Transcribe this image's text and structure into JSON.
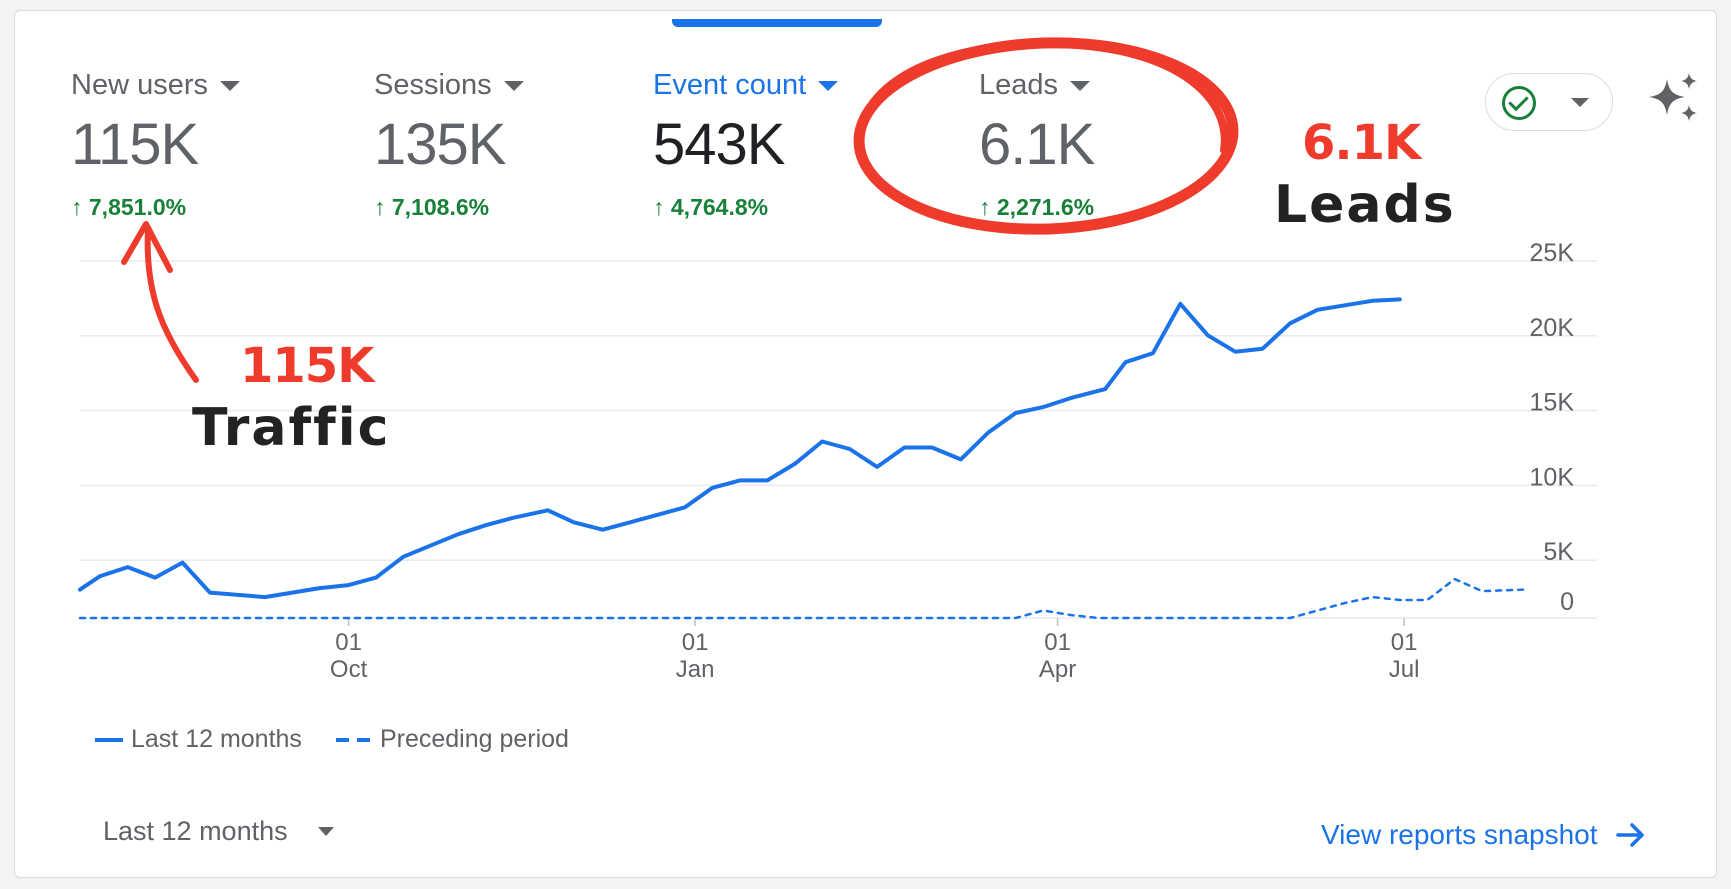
{
  "metrics": [
    {
      "label": "New users",
      "value": "115K",
      "change": "7,851.0%",
      "active": false
    },
    {
      "label": "Sessions",
      "value": "135K",
      "change": "7,108.6%",
      "active": false
    },
    {
      "label": "Event count",
      "value": "543K",
      "change": "4,764.8%",
      "active": true
    },
    {
      "label": "Leads",
      "value": "6.1K",
      "change": "2,271.6%",
      "active": false
    }
  ],
  "icons": {
    "status": "check-circle-icon",
    "insights": "sparkle-icon",
    "arrow": "arrow-right-icon",
    "change": "arrow-up-icon"
  },
  "colors": {
    "accent": "#1a73e8",
    "positive": "#188038",
    "annotation_red": "#ef3b2c",
    "annotation_black": "#222222"
  },
  "chart_data": {
    "type": "line",
    "ylim": [
      0,
      25000
    ],
    "yticks": [
      0,
      5000,
      10000,
      15000,
      20000,
      25000
    ],
    "ytick_labels": [
      "0",
      "5K",
      "10K",
      "15K",
      "20K",
      "25K"
    ],
    "xticks": [
      {
        "day": "01",
        "month": "Oct",
        "x": 0.186
      },
      {
        "day": "01",
        "month": "Jan",
        "x": 0.426
      },
      {
        "day": "01",
        "month": "Apr",
        "x": 0.677
      },
      {
        "day": "01",
        "month": "Jul",
        "x": 0.917
      }
    ],
    "grid": true,
    "legend_position": "bottom-left",
    "series": [
      {
        "name": "Last 12 months",
        "style": "solid",
        "x": [
          0,
          0.014,
          0.033,
          0.052,
          0.071,
          0.09,
          0.128,
          0.166,
          0.186,
          0.205,
          0.224,
          0.262,
          0.281,
          0.3,
          0.324,
          0.342,
          0.362,
          0.381,
          0.4,
          0.419,
          0.438,
          0.457,
          0.476,
          0.495,
          0.514,
          0.533,
          0.552,
          0.571,
          0.59,
          0.61,
          0.629,
          0.648,
          0.667,
          0.686,
          0.71,
          0.724,
          0.743,
          0.762,
          0.781,
          0.8,
          0.819,
          0.838,
          0.857,
          0.876,
          0.895,
          0.914
        ],
        "y": [
          1900,
          2800,
          3400,
          2700,
          3700,
          1700,
          1400,
          2000,
          2200,
          2700,
          4100,
          5600,
          6200,
          6700,
          7200,
          6400,
          5900,
          6400,
          6900,
          7400,
          8700,
          9200,
          9200,
          10300,
          11800,
          11300,
          10100,
          11400,
          11400,
          10600,
          12400,
          13700,
          14100,
          14700,
          15300,
          17100,
          17700,
          21000,
          18900,
          17800,
          18000,
          19700,
          20600,
          20900,
          21200,
          21300
        ]
      },
      {
        "name": "Preceding period",
        "style": "dashed",
        "x": [
          0,
          0.648,
          0.667,
          0.686,
          0.705,
          0.724,
          0.743,
          0.762,
          0.781,
          0.8,
          0.819,
          0.838,
          0.857,
          0.876,
          0.895,
          0.914,
          0.933,
          0.952,
          0.971,
          1.0
        ],
        "y": [
          0,
          0,
          500,
          200,
          0,
          0,
          0,
          0,
          0,
          0,
          0,
          0,
          500,
          1000,
          1400,
          1200,
          1200,
          2600,
          1800,
          1900
        ]
      }
    ]
  },
  "legend": {
    "current": "Last 12 months",
    "previous": "Preceding period"
  },
  "footer": {
    "date_range": "Last 12 months",
    "view_link": "View reports snapshot"
  },
  "annotations": {
    "traffic_value": "115K",
    "traffic_label": "Traffic",
    "leads_value": "6.1K",
    "leads_label": "Leads"
  }
}
